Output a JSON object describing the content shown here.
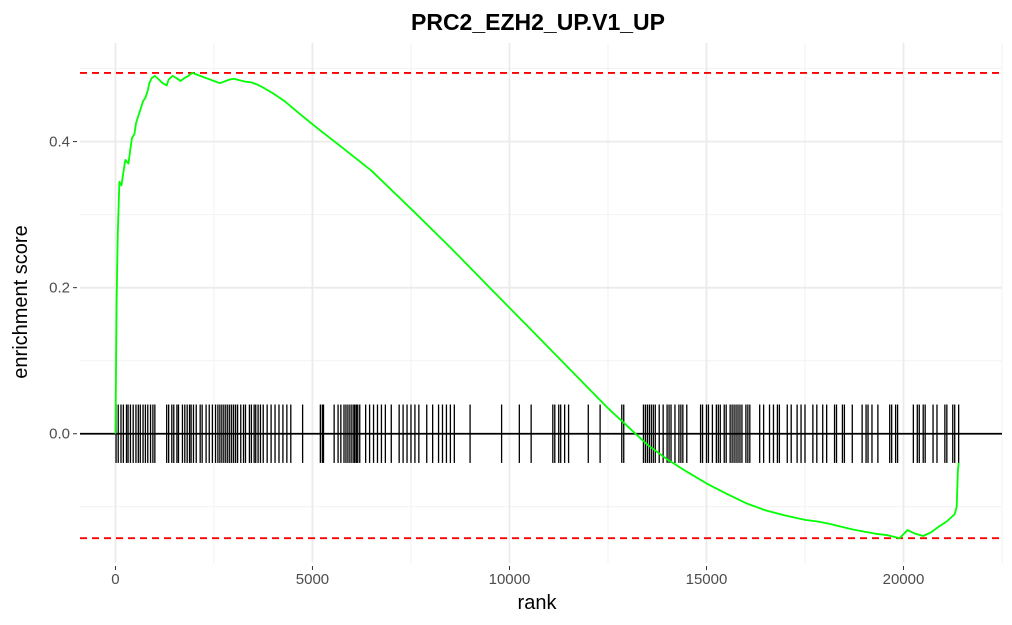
{
  "chart_data": {
    "type": "line",
    "title": "PRC2_EZH2_UP.V1_UP",
    "xlabel": "rank",
    "ylabel": "enrichment score",
    "xlim": [
      -900,
      22500
    ],
    "ylim": [
      -0.177,
      0.535
    ],
    "x_ticks": [
      0,
      5000,
      10000,
      15000,
      20000
    ],
    "x_tick_labels": [
      "0",
      "5000",
      "10000",
      "15000",
      "20000"
    ],
    "y_ticks": [
      0.0,
      0.2,
      0.4
    ],
    "y_tick_labels": [
      "0.0",
      "0.2",
      "0.4"
    ],
    "grid": true,
    "series": [
      {
        "color": "#00ff00",
        "x": [
          0,
          30,
          60,
          100,
          150,
          250,
          330,
          380,
          420,
          480,
          520,
          580,
          640,
          700,
          760,
          820,
          860,
          920,
          1000,
          1100,
          1200,
          1300,
          1350,
          1450,
          1550,
          1650,
          1750,
          1850,
          1950,
          2050,
          2200,
          2350,
          2500,
          2650,
          2800,
          2900,
          3000,
          3150,
          3300,
          3450,
          3600,
          3750,
          4000,
          4300,
          4700,
          5200,
          5800,
          6500,
          7500,
          8500,
          9500,
          10500,
          11500,
          12500,
          13500,
          14000,
          14500,
          15000,
          15500,
          16000,
          16500,
          17000,
          17500,
          17800,
          18100,
          18400,
          18700,
          19000,
          19300,
          19600,
          19900,
          20100,
          20300,
          20500,
          20700,
          20900,
          21100,
          21300,
          21350,
          21380,
          21400
        ],
        "y": [
          0.0,
          0.18,
          0.275,
          0.345,
          0.34,
          0.375,
          0.37,
          0.39,
          0.405,
          0.41,
          0.425,
          0.435,
          0.445,
          0.455,
          0.46,
          0.47,
          0.48,
          0.487,
          0.49,
          0.485,
          0.48,
          0.477,
          0.485,
          0.49,
          0.487,
          0.483,
          0.487,
          0.49,
          0.494,
          0.492,
          0.489,
          0.486,
          0.483,
          0.48,
          0.483,
          0.485,
          0.486,
          0.484,
          0.482,
          0.481,
          0.478,
          0.474,
          0.466,
          0.455,
          0.437,
          0.415,
          0.39,
          0.36,
          0.308,
          0.255,
          0.2,
          0.145,
          0.09,
          0.035,
          -0.015,
          -0.035,
          -0.052,
          -0.068,
          -0.082,
          -0.095,
          -0.105,
          -0.112,
          -0.118,
          -0.12,
          -0.123,
          -0.127,
          -0.131,
          -0.134,
          -0.137,
          -0.139,
          -0.143,
          -0.132,
          -0.137,
          -0.14,
          -0.135,
          -0.127,
          -0.12,
          -0.11,
          -0.1,
          -0.05,
          -0.04
        ]
      }
    ],
    "hit_ranks": [
      15,
      70,
      140,
      200,
      280,
      320,
      380,
      450,
      520,
      580,
      630,
      700,
      760,
      820,
      890,
      950,
      1000,
      1300,
      1350,
      1430,
      1480,
      1560,
      1600,
      1700,
      1760,
      1820,
      1880,
      1920,
      1980,
      2050,
      2150,
      2200,
      2300,
      2380,
      2460,
      2540,
      2600,
      2650,
      2700,
      2750,
      2800,
      2850,
      2900,
      2950,
      3000,
      3050,
      3100,
      3180,
      3250,
      3300,
      3400,
      3450,
      3520,
      3560,
      3620,
      3680,
      3750,
      3850,
      3950,
      4050,
      4150,
      4250,
      4350,
      4450,
      4750,
      5200,
      5250,
      5280,
      5550,
      5650,
      5720,
      5800,
      5850,
      5900,
      5950,
      6000,
      6050,
      6080,
      6120,
      6150,
      6200,
      6350,
      6450,
      6550,
      6650,
      6750,
      6850,
      7000,
      7200,
      7300,
      7400,
      7500,
      7600,
      7700,
      7900,
      8050,
      8200,
      8300,
      8400,
      8500,
      8600,
      9000,
      9800,
      10250,
      10550,
      11100,
      11150,
      11250,
      11300,
      11400,
      11500,
      12000,
      12300,
      12850,
      12900,
      13400,
      13450,
      13500,
      13550,
      13600,
      13650,
      13700,
      13800,
      13900,
      14000,
      14050,
      14100,
      14200,
      14300,
      14350,
      14400,
      14500,
      14850,
      14900,
      15000,
      15050,
      15150,
      15250,
      15300,
      15350,
      15450,
      15500,
      15600,
      15650,
      15700,
      15750,
      15800,
      15850,
      15900,
      16000,
      16050,
      16100,
      16350,
      16450,
      16600,
      16700,
      16800,
      16850,
      17050,
      17150,
      17300,
      17400,
      17500,
      17700,
      17800,
      17950,
      18050,
      18250,
      18300,
      18450,
      18500,
      18700,
      18950,
      19050,
      19100,
      19200,
      19350,
      19650,
      19700,
      19800,
      19850,
      20250,
      20350,
      20400,
      20500,
      20550,
      20750,
      20850,
      21050,
      21100,
      21250,
      21300,
      21400
    ],
    "ref_lines": [
      {
        "y": 0.494,
        "color": "#ff0000",
        "style": "dashed"
      },
      {
        "y": -0.143,
        "color": "#ff0000",
        "style": "dashed"
      }
    ],
    "zero_line_y": 0.0,
    "hit_tick_halfheight": 0.04
  }
}
